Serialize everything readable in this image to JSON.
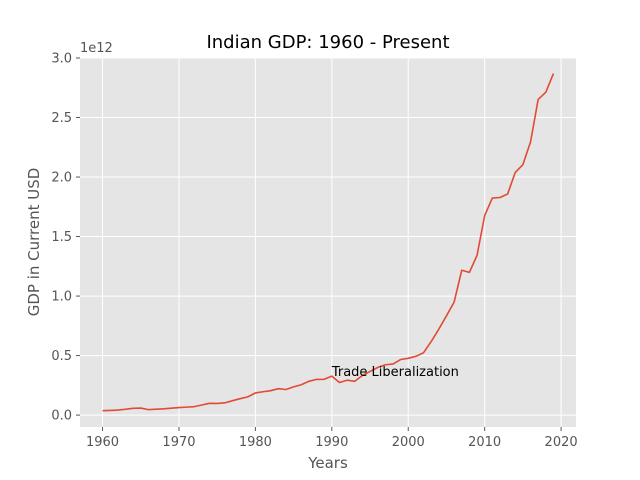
{
  "chart_data": {
    "type": "line",
    "title": "Indian GDP: 1960 - Present",
    "xlabel": "Years",
    "ylabel": "GDP in Current USD",
    "y_offset_label": "1e12",
    "xlim": [
      1957.05,
      2021.95
    ],
    "ylim": [
      -0.1,
      3.0
    ],
    "y_scale_factor": 1000000000000.0,
    "x_ticks": [
      1960,
      1970,
      1980,
      1990,
      2000,
      2010,
      2020
    ],
    "y_ticks": [
      0.0,
      0.5,
      1.0,
      1.5,
      2.0,
      2.5,
      3.0
    ],
    "y_tick_labels": [
      "0.0",
      "0.5",
      "1.0",
      "1.5",
      "2.0",
      "2.5",
      "3.0"
    ],
    "grid": true,
    "style": "ggplot",
    "line_color": "#E24A33",
    "series": [
      {
        "x": [
          1960,
          1961,
          1962,
          1963,
          1964,
          1965,
          1966,
          1967,
          1968,
          1969,
          1970,
          1971,
          1972,
          1973,
          1974,
          1975,
          1976,
          1977,
          1978,
          1979,
          1980,
          1981,
          1982,
          1983,
          1984,
          1985,
          1986,
          1987,
          1988,
          1989,
          1990,
          1991,
          1992,
          1993,
          1994,
          1995,
          1996,
          1997,
          1998,
          1999,
          2000,
          2001,
          2002,
          2003,
          2004,
          2005,
          2006,
          2007,
          2008,
          2009,
          2010,
          2011,
          2012,
          2013,
          2014,
          2015,
          2016,
          2017,
          2018,
          2019
        ],
        "values": [
          0.037,
          0.039,
          0.042,
          0.049,
          0.057,
          0.059,
          0.046,
          0.05,
          0.053,
          0.058,
          0.063,
          0.067,
          0.071,
          0.085,
          0.099,
          0.098,
          0.103,
          0.121,
          0.138,
          0.153,
          0.186,
          0.196,
          0.205,
          0.222,
          0.215,
          0.237,
          0.255,
          0.284,
          0.3,
          0.301,
          0.327,
          0.274,
          0.293,
          0.284,
          0.333,
          0.367,
          0.4,
          0.423,
          0.429,
          0.467,
          0.477,
          0.494,
          0.524,
          0.618,
          0.722,
          0.834,
          0.949,
          1.217,
          1.199,
          1.342,
          1.676,
          1.823,
          1.828,
          1.857,
          2.039,
          2.104,
          2.295,
          2.652,
          2.713,
          2.869
        ]
      }
    ],
    "annotations": [
      {
        "text": "Trade Liberalization",
        "x": 1990,
        "y": 0.33
      }
    ]
  }
}
